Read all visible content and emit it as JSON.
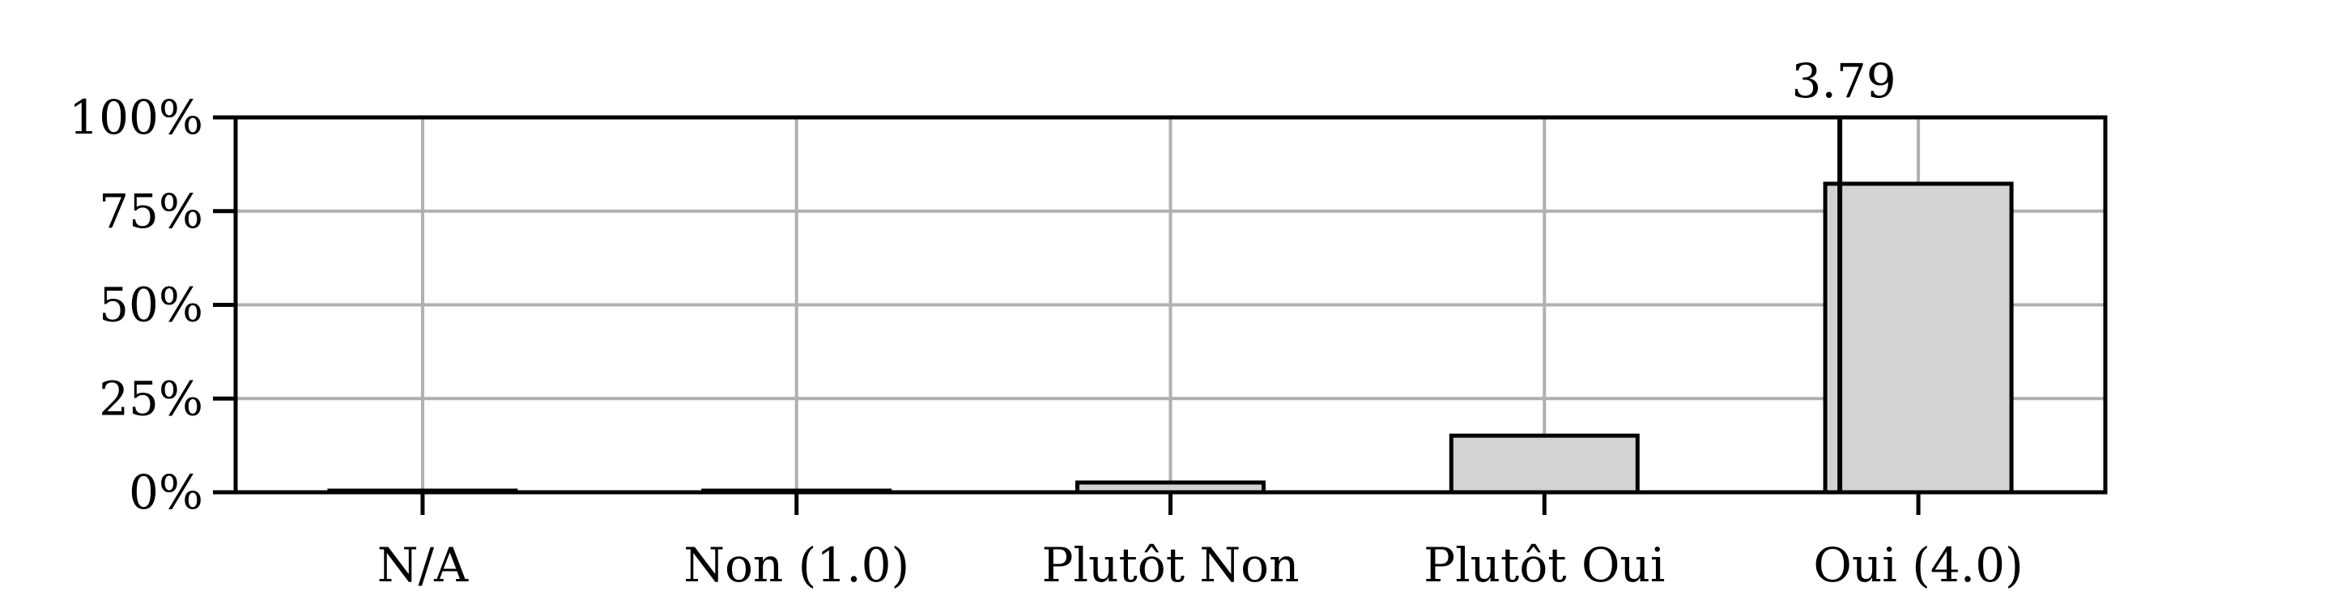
{
  "chart_data": {
    "type": "bar",
    "title": "",
    "xlabel": "",
    "ylabel": "",
    "categories": [
      "N/A",
      "Non (1.0)",
      "Plutôt Non",
      "Plutôt Oui",
      "Oui (4.0)"
    ],
    "values": [
      0,
      0,
      2.6,
      15.1,
      82.3
    ],
    "ylim": [
      0,
      100
    ],
    "yticks": [
      0,
      25,
      50,
      75,
      100
    ],
    "ytick_labels": [
      "0%",
      "25%",
      "50%",
      "75%",
      "100%"
    ],
    "grid": true,
    "bar_color": "#d3d3d3",
    "edge_color": "#000000",
    "grid_color": "#b0b0b0",
    "mean": {
      "value": 3.79,
      "label": "3.79",
      "x_scale": [
        1,
        4
      ]
    }
  }
}
